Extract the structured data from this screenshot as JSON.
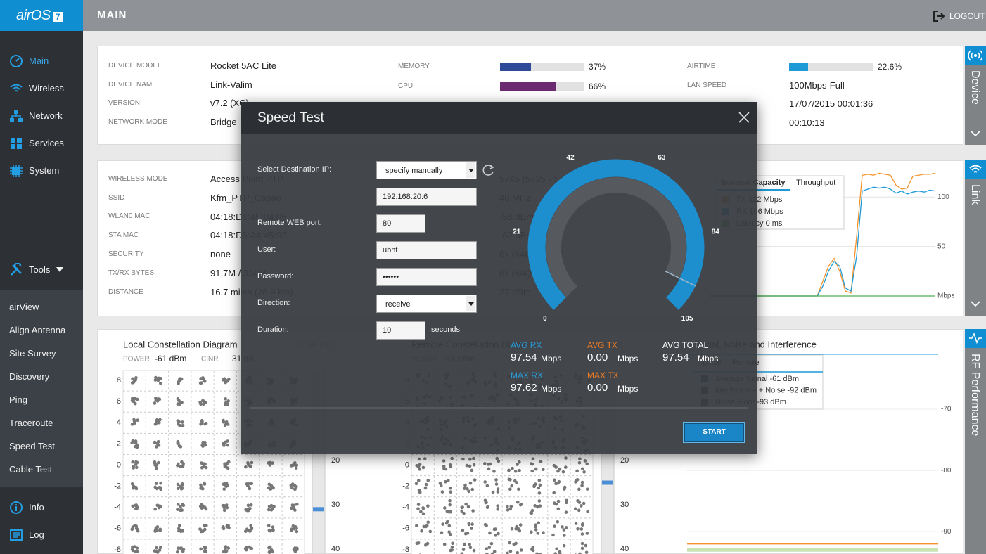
{
  "sidebar": {
    "logo": "airOS",
    "logo_version": "7",
    "nav": [
      "Main",
      "Wireless",
      "Network",
      "Services",
      "System"
    ],
    "tools": "Tools",
    "tool_items": [
      "airView",
      "Align Antenna",
      "Site Survey",
      "Discovery",
      "Ping",
      "Traceroute",
      "Speed Test",
      "Cable Test"
    ],
    "footer_nav": [
      "Info",
      "Log"
    ]
  },
  "header": {
    "title": "MAIN",
    "logout": "LOGOUT"
  },
  "device": {
    "tab": "Device",
    "fields": [
      {
        "label": "DEVICE MODEL",
        "value": "Rocket 5AC Lite"
      },
      {
        "label": "DEVICE NAME",
        "value": "Link-Valim"
      },
      {
        "label": "VERSION",
        "value": "v7.2 (XC)"
      },
      {
        "label": "NETWORK MODE",
        "value": "Bridge"
      }
    ],
    "meters": [
      {
        "label": "MEMORY",
        "value": 37,
        "value_label": "37%",
        "color": "#2e4b9a"
      },
      {
        "label": "CPU",
        "value": 66,
        "value_label": "66%",
        "color": "#6b2a72"
      },
      {
        "label": "AIRTIME",
        "value": 22.6,
        "value_label": "22.6%",
        "color": "#1e9bd7"
      }
    ],
    "meter_xlim": [
      0,
      100
    ],
    "right_fields": [
      {
        "label": "LAN SPEED",
        "value": "100Mbps-Full"
      },
      {
        "value": "17/07/2015 00:01:36"
      },
      {
        "value": "00:10:13"
      }
    ]
  },
  "link": {
    "tab": "Link",
    "fields": [
      {
        "label": "WIRELESS MODE",
        "value": "Access Point PTP"
      },
      {
        "label": "SSID",
        "value": "Kfm_PTP_Capao"
      },
      {
        "label": "WLAN0 MAC",
        "value": "04:18:D6:4E:04:05"
      },
      {
        "label": "STA MAC",
        "value": "04:18:D6:A4:45:92"
      },
      {
        "label": "SECURITY",
        "value": "none"
      },
      {
        "label": "TX/RX BYTES",
        "value": "91.7M / 334M"
      },
      {
        "label": "DISTANCE",
        "value": "16.7 miles (26.9 km)"
      }
    ],
    "obscured_values": [
      "5745 (5735 - 5755)",
      "40 MHz",
      "-58 dBm",
      "-62 dBm",
      "6x (64QAM 5/6)",
      "6x (64QAM 5/6)",
      "27 dBm"
    ],
    "chart": {
      "type": "line",
      "tabs": [
        "Isolated Capacity",
        "Throughput"
      ],
      "series": [
        {
          "name": "TX 122 Mbps",
          "color": "#f5922a",
          "values": [
            0,
            0,
            0,
            0,
            0,
            0,
            0,
            0,
            0,
            0,
            0,
            0,
            0,
            0,
            0,
            0,
            0,
            0,
            0,
            0,
            15,
            30,
            38,
            25,
            5,
            3,
            60,
            122,
            123,
            122,
            124,
            123,
            122,
            112,
            108,
            109,
            121,
            122,
            123,
            123,
            124
          ]
        },
        {
          "name": "RX 106 Mbps",
          "color": "#1e9bd7",
          "values": [
            0,
            0,
            0,
            0,
            0,
            0,
            0,
            0,
            0,
            0,
            0,
            0,
            0,
            0,
            0,
            0,
            0,
            0,
            0,
            0,
            10,
            25,
            35,
            30,
            8,
            5,
            40,
            106,
            108,
            110,
            109,
            110,
            108,
            104,
            106,
            103,
            105,
            106,
            105,
            107,
            106
          ]
        },
        {
          "name": "Latency 0 ms",
          "color": "#4caf50",
          "values": [
            0,
            0,
            0,
            0,
            0,
            0,
            0,
            0,
            0,
            0,
            0,
            0,
            0,
            0,
            0,
            0,
            0,
            0,
            0,
            0,
            0,
            0,
            0,
            0,
            0,
            0,
            0,
            0,
            0,
            0,
            0,
            0,
            0,
            0,
            0,
            0,
            0,
            0,
            0,
            0,
            0
          ]
        }
      ],
      "ylim": [
        0,
        130
      ],
      "yticks": [
        {
          "value": 0,
          "label": "Mbps"
        },
        50,
        100
      ],
      "grid": true
    }
  },
  "rf": {
    "tab": "RF Performance",
    "local": {
      "title": "Local Constellation Diagram",
      "cinr_title": "CINR (dB)",
      "power_label": "POWER",
      "power": "-61 dBm",
      "cinr_label": "CINR",
      "cinr": "31 dB",
      "cinr_value": 31
    },
    "remote": {
      "title": "Remote Constellation Diagram",
      "cinr_title": "CINR (dB)",
      "power_label": "POWER",
      "power": "-61 dBm",
      "cinr_value": 25
    },
    "constellation_yticks": [
      8,
      6,
      4,
      2,
      0,
      -2,
      -4,
      -6,
      -8
    ],
    "constellation_ylim": [
      -9,
      9
    ],
    "cinr_ylim": [
      0,
      40
    ],
    "cinr_ticks": [
      20,
      30,
      40
    ],
    "sni": {
      "title": "Signal, Noise and Interference",
      "tabs": [
        "Local",
        "Remote"
      ],
      "series": [
        {
          "name": "Average Signal -61 dBm",
          "color": "#1e9bd7",
          "swatch": "#2b4a68",
          "value": -61
        },
        {
          "name": "Interference + Noise -92 dBm",
          "color": "#f5922a",
          "swatch": "#6a4426",
          "value": -92
        },
        {
          "name": "Noise Floor -93 dBm",
          "color": "#c9e3b5",
          "swatch": "#444444",
          "value": -93
        }
      ],
      "ylim": [
        -94,
        -60
      ],
      "yticks": [
        -70,
        -80,
        -90
      ]
    }
  },
  "speed_test": {
    "title": "Speed Test",
    "fields": [
      {
        "label": "Select Destination IP:",
        "value": "specify manually"
      },
      {
        "value": "192.168.20.6"
      },
      {
        "label": "Remote WEB port:",
        "value": "80"
      },
      {
        "label": "User:",
        "value": "ubnt"
      },
      {
        "label": "Password:",
        "value": "••••••"
      },
      {
        "label": "Direction:",
        "value": "receive"
      },
      {
        "label": "Duration:",
        "value": "10",
        "unit": "seconds"
      }
    ],
    "gauge_ticks": [
      0,
      21,
      42,
      63,
      84,
      105
    ],
    "gauge_xlim": [
      0,
      105
    ],
    "results": [
      {
        "label": "AVG RX",
        "value": 97.54,
        "unit": "Mbps",
        "color": "#2a9bd7"
      },
      {
        "label": "AVG TX",
        "value": 0,
        "value_label": "0.00",
        "unit": "Mbps",
        "color": "#f07c22"
      },
      {
        "label": "AVG TOTAL",
        "value": 97.54,
        "unit": "Mbps",
        "color": "#ffffff"
      },
      {
        "label": "MAX RX",
        "value": 97.62,
        "unit": "Mbps",
        "color": "#2a9bd7"
      },
      {
        "label": "MAX TX",
        "value": 0,
        "value_label": "0.00",
        "unit": "Mbps",
        "color": "#f07c22"
      }
    ],
    "start": "START"
  }
}
